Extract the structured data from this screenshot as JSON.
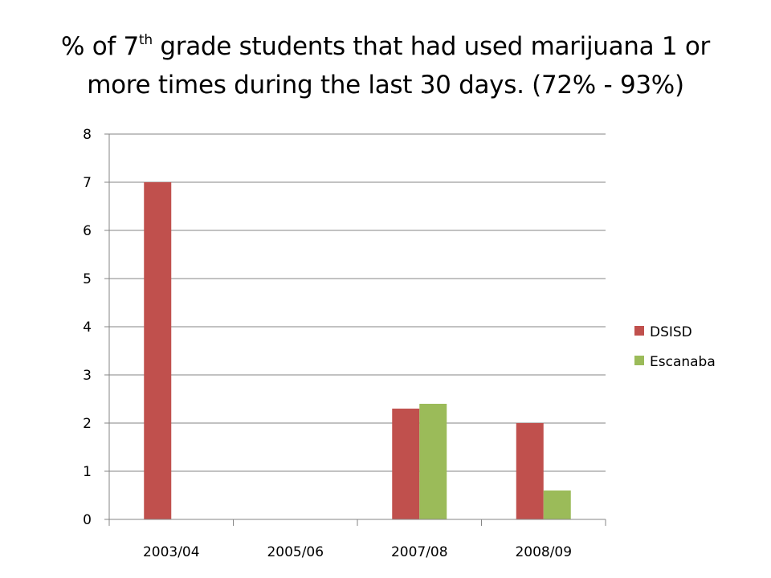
{
  "title": {
    "part1": "%  of 7",
    "sup": "th",
    "part2": " grade students that had used marijuana 1 or",
    "line2": "more times during the last 30 days. (72% - 93%)"
  },
  "chart_data": {
    "type": "bar",
    "categories": [
      "2003/04",
      "2005/06",
      "2007/08",
      "2008/09"
    ],
    "series": [
      {
        "name": "DSISD",
        "values": [
          7,
          null,
          2.3,
          2.0
        ],
        "color": "#c0504d"
      },
      {
        "name": "Escanaba",
        "values": [
          null,
          null,
          2.4,
          0.6
        ],
        "color": "#9bbb59"
      }
    ],
    "ylim": [
      0,
      8
    ],
    "yticks": [
      0,
      1,
      2,
      3,
      4,
      5,
      6,
      7,
      8
    ],
    "grid": true,
    "legend": "right"
  }
}
